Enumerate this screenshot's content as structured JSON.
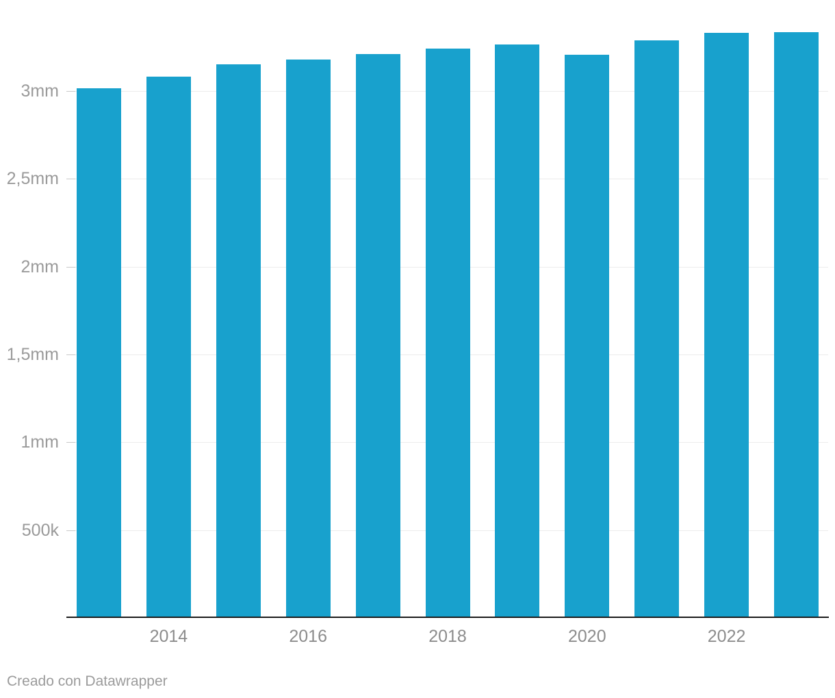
{
  "colors": {
    "background": "#ffffff",
    "bar": "#18a1cd",
    "grid": "#ececec",
    "tick": "#c9c9c9",
    "axis_line": "#1a1a1a",
    "y_label": "#9a9a9a",
    "x_label": "#8c8c8c",
    "attribution": "#9b9b9b"
  },
  "chart_data": {
    "type": "bar",
    "title": "",
    "xlabel": "",
    "ylabel": "",
    "value_unit": "millions (mm = millones)",
    "categories": [
      "2013",
      "2014",
      "2015",
      "2016",
      "2017",
      "2018",
      "2019",
      "2020",
      "2021",
      "2022",
      "2023"
    ],
    "values": [
      3.015,
      3.082,
      3.152,
      3.179,
      3.21,
      3.241,
      3.264,
      3.206,
      3.288,
      3.331,
      3.335
    ],
    "ylim": [
      0,
      3.52
    ],
    "grid": "horizontal",
    "legend": "none",
    "bar_color": "#18a1cd",
    "y_ticks": [
      {
        "value": 0.5,
        "label": "500k"
      },
      {
        "value": 1.0,
        "label": "1mm"
      },
      {
        "value": 1.5,
        "label": "1,5mm"
      },
      {
        "value": 2.0,
        "label": "2mm"
      },
      {
        "value": 2.5,
        "label": "2,5mm"
      },
      {
        "value": 3.0,
        "label": "3mm"
      }
    ],
    "x_tick_labels": [
      "2014",
      "2016",
      "2018",
      "2020",
      "2022"
    ],
    "x_tick_category_index": [
      1,
      3,
      5,
      7,
      9
    ]
  },
  "footer": {
    "attribution": "Creado con Datawrapper"
  }
}
